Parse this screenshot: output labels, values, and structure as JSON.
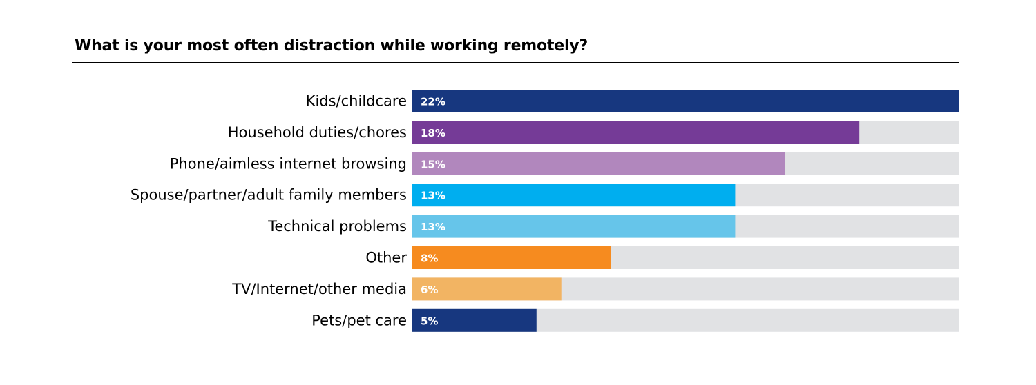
{
  "chart_data": {
    "type": "bar",
    "orientation": "horizontal",
    "title": "What is your most often distraction while working remotely?",
    "categories": [
      "Kids/childcare",
      "Household duties/chores",
      "Phone/aimless internet browsing",
      "Spouse/partner/adult family members",
      "Technical problems",
      "Other",
      "TV/Internet/other media",
      "Pets/pet care"
    ],
    "values": [
      22,
      18,
      15,
      13,
      13,
      8,
      6,
      5
    ],
    "value_labels": [
      "22%",
      "18%",
      "15%",
      "13%",
      "13%",
      "8%",
      "6%",
      "5%"
    ],
    "unit": "%",
    "xlim": [
      0,
      22
    ],
    "colors": [
      "#17377f",
      "#753b97",
      "#b187bd",
      "#00aeef",
      "#66c5ea",
      "#f68b1f",
      "#f2b463",
      "#17377f"
    ],
    "track_color": "#e1e2e4",
    "grid": false,
    "legend": "none"
  }
}
